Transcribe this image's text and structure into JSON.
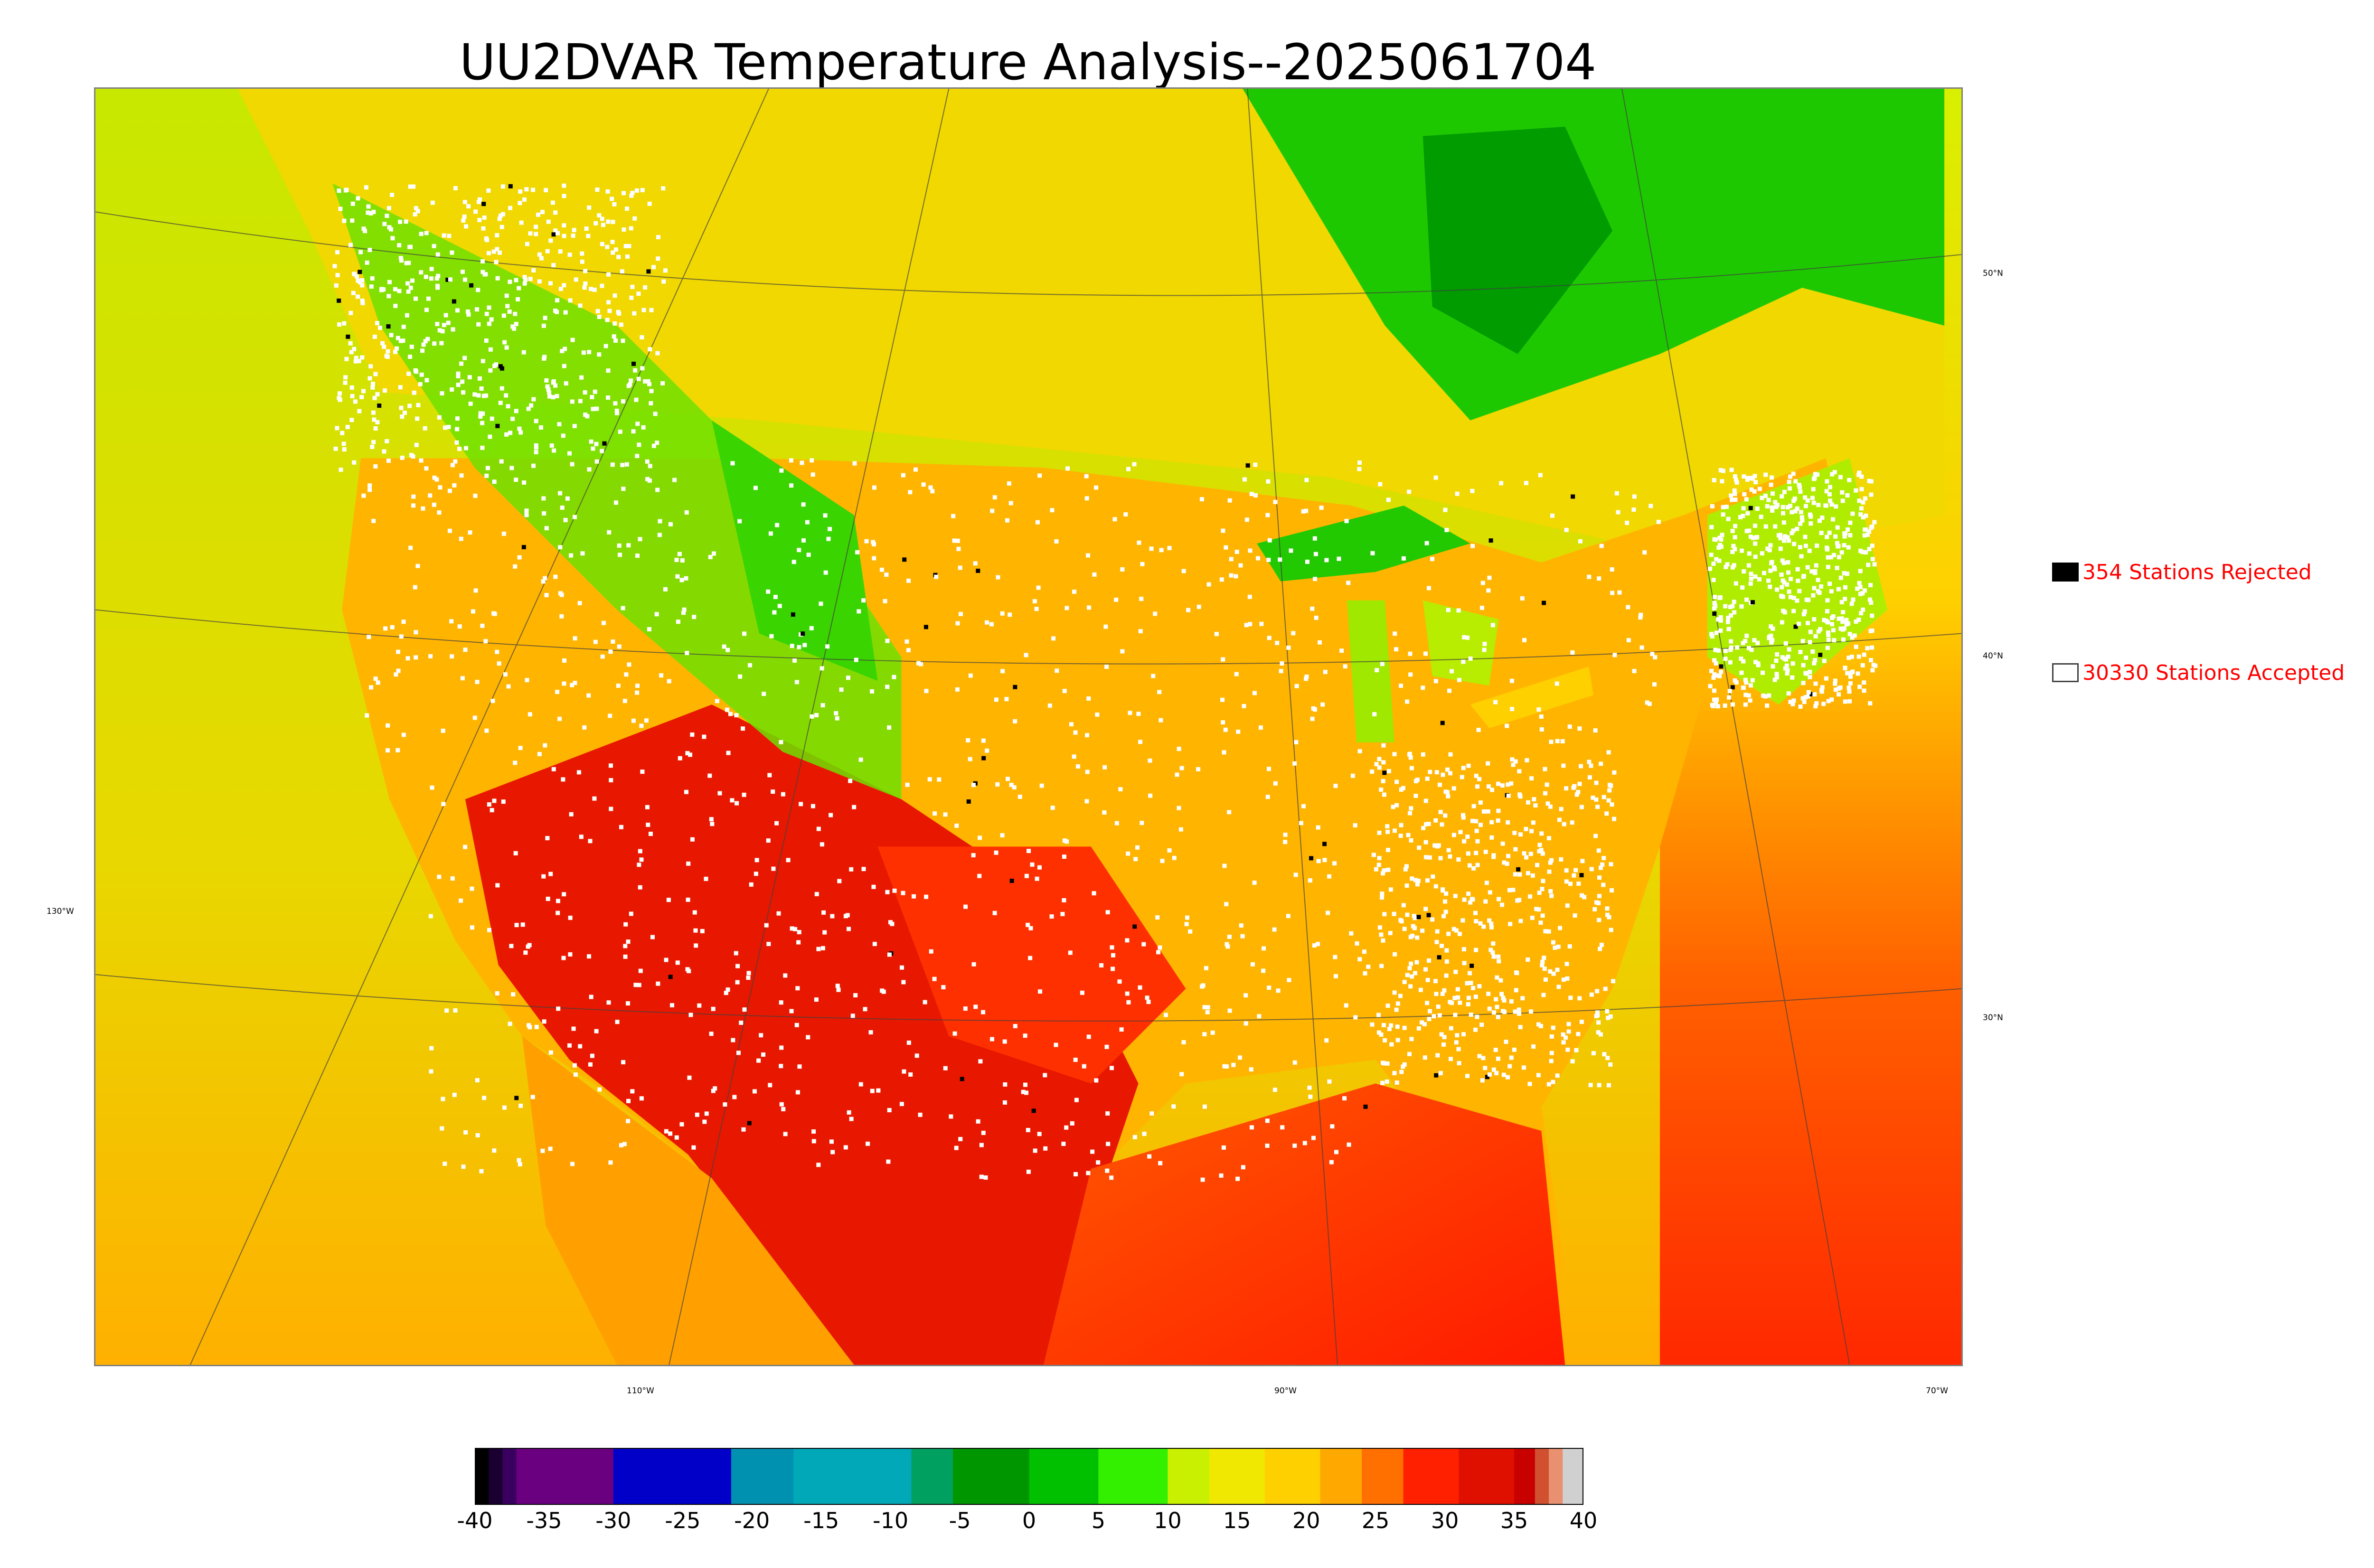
{
  "title": "UU2DVAR Temperature Analysis--2025061704",
  "map": {
    "lat_labels": [
      "50°N",
      "40°N",
      "30°N"
    ],
    "lon_labels": [
      "130°W",
      "110°W",
      "90°W",
      "70°W"
    ],
    "colors": {
      "ocean_pacific": "#e6d83a",
      "ocean_gulf": "#ff2a00",
      "canada_north": "#22c400",
      "station_accepted": "#ffffff",
      "station_rejected": "#000000"
    }
  },
  "legend": {
    "rejected": {
      "text": "354 Stations Rejected",
      "count": 354,
      "swatch_color": "#000000"
    },
    "accepted": {
      "text": "30330 Stations Accepted",
      "count": 30330,
      "swatch_color": "#ffffff"
    }
  },
  "colorbar": {
    "min": -40,
    "max": 40,
    "tick_labels": [
      "-40",
      "-35",
      "-30",
      "-25",
      "-20",
      "-15",
      "-10",
      "-5",
      "0",
      "5",
      "10",
      "15",
      "20",
      "25",
      "30",
      "35",
      "40"
    ],
    "segments": [
      {
        "from": -40,
        "to": -39,
        "color": "#000000"
      },
      {
        "from": -39,
        "to": -38,
        "color": "#1a0030"
      },
      {
        "from": -38,
        "to": -37,
        "color": "#3a0060"
      },
      {
        "from": -37,
        "to": -30,
        "color": "#6a0080"
      },
      {
        "from": -30,
        "to": -21.5,
        "color": "#0000c8"
      },
      {
        "from": -21.5,
        "to": -17,
        "color": "#0090b0"
      },
      {
        "from": -17,
        "to": -8.5,
        "color": "#00a8b8"
      },
      {
        "from": -8.5,
        "to": -5.5,
        "color": "#00a060"
      },
      {
        "from": -5.5,
        "to": 0,
        "color": "#009600"
      },
      {
        "from": 0,
        "to": 5,
        "color": "#00c000"
      },
      {
        "from": 5,
        "to": 10,
        "color": "#33f000"
      },
      {
        "from": 10,
        "to": 13,
        "color": "#c8f000"
      },
      {
        "from": 13,
        "to": 17,
        "color": "#f0e800"
      },
      {
        "from": 17,
        "to": 21,
        "color": "#ffd000"
      },
      {
        "from": 21,
        "to": 24,
        "color": "#ffa800"
      },
      {
        "from": 24,
        "to": 27,
        "color": "#ff7000"
      },
      {
        "from": 27,
        "to": 31,
        "color": "#ff2000"
      },
      {
        "from": 31,
        "to": 35,
        "color": "#e01000"
      },
      {
        "from": 35,
        "to": 36.5,
        "color": "#c80000"
      },
      {
        "from": 36.5,
        "to": 37.5,
        "color": "#d05030"
      },
      {
        "from": 37.5,
        "to": 38.5,
        "color": "#e89070"
      },
      {
        "from": 38.5,
        "to": 40,
        "color": "#d0d0d0"
      }
    ]
  }
}
